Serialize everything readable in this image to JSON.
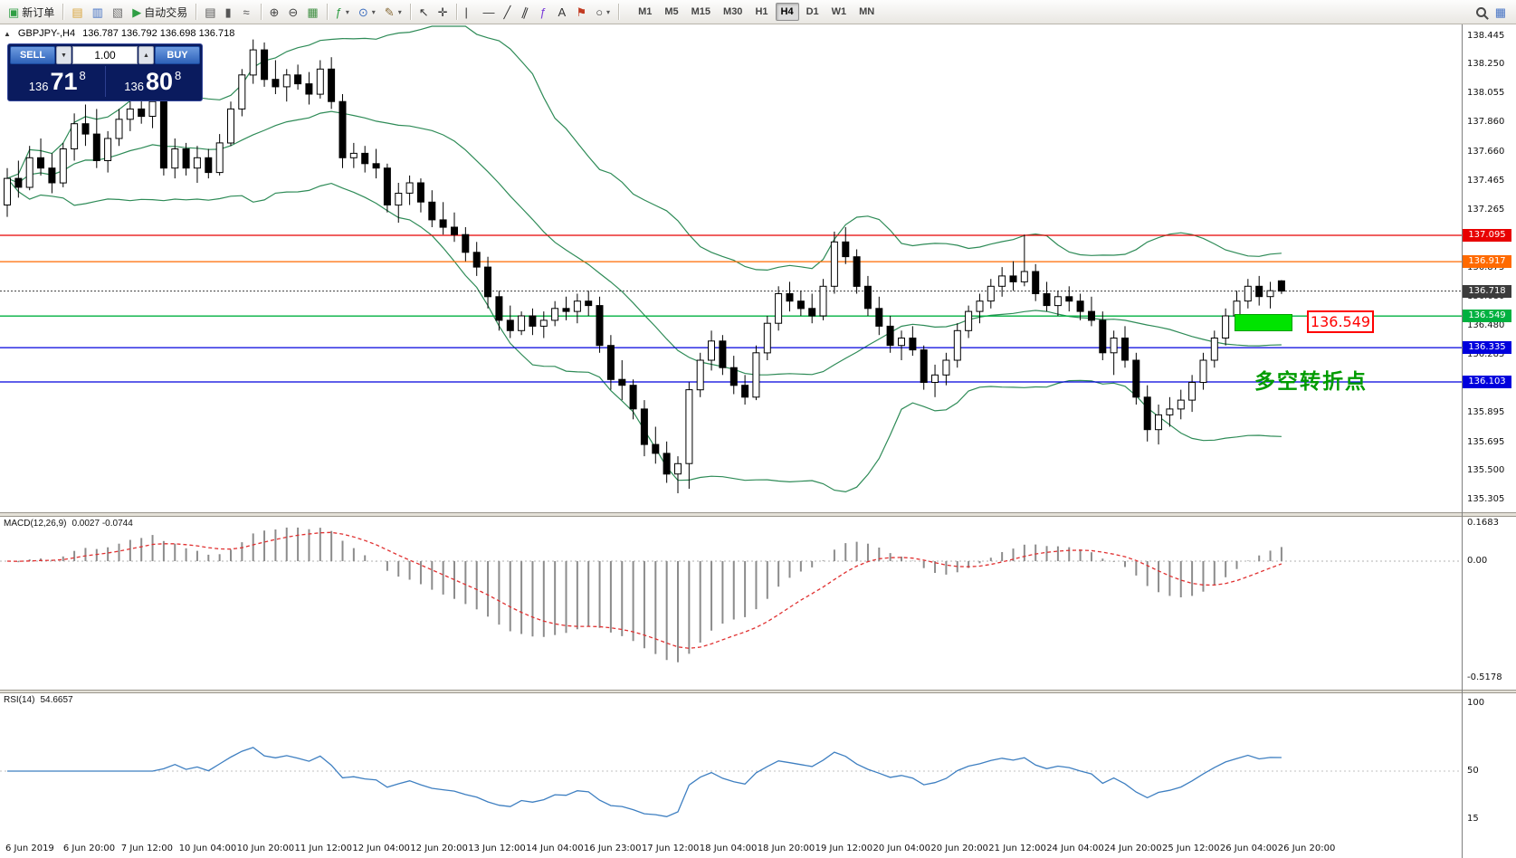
{
  "toolbar": {
    "caret_glyph": "▾",
    "left_items": [
      {
        "name": "new-order-button",
        "glyph": "▣",
        "glyph_color": "#2f9e44",
        "label": "新订单"
      },
      {
        "name": "separator"
      },
      {
        "name": "chart-window-icon",
        "glyph": "▤",
        "glyph_color": "#d9a43b"
      },
      {
        "name": "profile-icon",
        "glyph": "▥",
        "glyph_color": "#4472c4"
      },
      {
        "name": "navigator-icon",
        "glyph": "▧",
        "glyph_color": "#767676"
      },
      {
        "name": "auto-trading-button",
        "glyph": "▶",
        "glyph_color": "#2f9e44",
        "label": "自动交易"
      },
      {
        "name": "separator"
      },
      {
        "name": "bar-chart-type-icon",
        "glyph": "▤",
        "glyph_color": "#555555"
      },
      {
        "name": "candlestick-type-icon",
        "glyph": "▮",
        "glyph_color": "#555555"
      },
      {
        "name": "line-chart-type-icon",
        "glyph": "≈",
        "glyph_color": "#555555"
      },
      {
        "name": "separator"
      },
      {
        "name": "zoom-in-icon",
        "glyph": "⊕",
        "glyph_color": "#444444"
      },
      {
        "name": "zoom-out-icon",
        "glyph": "⊖",
        "glyph_color": "#444444"
      },
      {
        "name": "tile-windows-icon",
        "glyph": "▦",
        "glyph_color": "#3e8e41"
      },
      {
        "name": "separator"
      },
      {
        "name": "indicators-button",
        "glyph": "ƒ",
        "glyph_color": "#2f9e44",
        "caret": true
      },
      {
        "name": "period-button",
        "glyph": "⊙",
        "glyph_color": "#3e6fbf",
        "caret": true
      },
      {
        "name": "template-button",
        "glyph": "✎",
        "glyph_color": "#8a6d3b",
        "caret": true
      },
      {
        "name": "separator"
      },
      {
        "name": "cursor-icon",
        "glyph": "↖",
        "glyph_color": "#333333"
      },
      {
        "name": "crosshair-icon",
        "glyph": "✛",
        "glyph_color": "#333333"
      },
      {
        "name": "separator"
      },
      {
        "name": "vertical-line-icon",
        "glyph": "|",
        "glyph_color": "#333333"
      },
      {
        "name": "horizontal-line-icon",
        "glyph": "—",
        "glyph_color": "#333333"
      },
      {
        "name": "trendline-icon",
        "glyph": "╱",
        "glyph_color": "#333333"
      },
      {
        "name": "channel-icon",
        "glyph": "∥",
        "glyph_color": "#333333",
        "rotate": true
      },
      {
        "name": "fibonacci-icon",
        "glyph": "ƒ",
        "glyph_color": "#7a3bd9"
      },
      {
        "name": "text-icon",
        "glyph": "A",
        "glyph_color": "#333333"
      },
      {
        "name": "arrow-tool-icon",
        "glyph": "⚑",
        "glyph_color": "#c23b22"
      },
      {
        "name": "shapes-button",
        "glyph": "○",
        "glyph_color": "#333333",
        "caret": true
      },
      {
        "name": "separator"
      }
    ],
    "timeframes": [
      "M1",
      "M5",
      "M15",
      "M30",
      "H1",
      "H4",
      "D1",
      "W1",
      "MN"
    ],
    "active_timeframe": "H4",
    "right_items": [
      {
        "name": "search-button",
        "icon": "search"
      },
      {
        "name": "new-chart-button",
        "glyph": "▦",
        "glyph_color": "#4472c4"
      }
    ]
  },
  "chart": {
    "collapse_glyph": "▲",
    "symbol_title": "GBPJPY-,H4",
    "ohlc_text": "136.787 136.792 136.698 136.718",
    "trade_panel": {
      "sell_label": "SELL",
      "buy_label": "BUY",
      "volume": "1.00",
      "volume_down_glyph": "▼",
      "volume_up_glyph": "▲",
      "sell_price": {
        "small": "136",
        "big": "71",
        "sup": "8"
      },
      "buy_price": {
        "small": "136",
        "big": "80",
        "sup": "8"
      }
    },
    "annotations": {
      "price_box": "136.549",
      "note_text": "多空转折点"
    }
  },
  "chart_data": {
    "type": "candlestick",
    "symbol": "GBPJPY-",
    "timeframe": "H4",
    "ohlc_display": {
      "open": "136.787",
      "high": "136.792",
      "low": "136.698",
      "close": "136.718"
    },
    "y_ticks": [
      138.445,
      138.25,
      138.055,
      137.86,
      137.66,
      137.465,
      137.265,
      137.07,
      136.875,
      136.68,
      136.48,
      136.285,
      136.09,
      135.895,
      135.695,
      135.5,
      135.305
    ],
    "time_labels": [
      "6 Jun 2019",
      "6 Jun 20:00",
      "7 Jun 12:00",
      "10 Jun 04:00",
      "10 Jun 20:00",
      "11 Jun 12:00",
      "12 Jun 04:00",
      "12 Jun 20:00",
      "13 Jun 12:00",
      "14 Jun 04:00",
      "16 Jun 23:00",
      "17 Jun 12:00",
      "18 Jun 04:00",
      "18 Jun 20:00",
      "19 Jun 12:00",
      "20 Jun 04:00",
      "20 Jun 20:00",
      "21 Jun 12:00",
      "24 Jun 04:00",
      "24 Jun 20:00",
      "25 Jun 12:00",
      "26 Jun 04:00",
      "26 Jun 20:00"
    ],
    "levels": [
      {
        "price": 137.095,
        "color": "#e80000",
        "line": "solid"
      },
      {
        "price": 136.917,
        "color": "#ff6a00",
        "line": "solid"
      },
      {
        "price": 136.718,
        "color": "#3c3c3c",
        "line": "dotted",
        "current": true
      },
      {
        "price": 136.549,
        "color": "#00b140",
        "line": "solid"
      },
      {
        "price": 136.335,
        "color": "#0000dd",
        "line": "solid"
      },
      {
        "price": 136.103,
        "color": "#0000dd",
        "line": "solid"
      }
    ],
    "overlays": [
      {
        "name": "bollinger",
        "period": 20,
        "deviation": 2,
        "color": "#2e8b57"
      }
    ],
    "macd": {
      "label": "MACD(12,26,9)",
      "values_text": "0.0027 -0.0744",
      "fast": 12,
      "slow": 26,
      "signal": 9,
      "ticks": [
        {
          "label": "0.1683",
          "value": 0.1683
        },
        {
          "label": "0.00",
          "value": 0
        },
        {
          "label": "-0.5178",
          "value": -0.5178
        }
      ],
      "histogram_color": "#8c8c8c",
      "signal_color": "#e03131"
    },
    "rsi": {
      "label": "RSI(14)",
      "value_text": "54.6657",
      "period": 14,
      "ticks": [
        {
          "label": "100",
          "value": 100
        },
        {
          "label": "50",
          "value": 50
        },
        {
          "label": "15",
          "value": 15
        }
      ],
      "color": "#3e7fc1"
    },
    "candles": [
      [
        137.3,
        137.55,
        137.22,
        137.48
      ],
      [
        137.48,
        137.6,
        137.35,
        137.42
      ],
      [
        137.42,
        137.7,
        137.4,
        137.62
      ],
      [
        137.62,
        137.75,
        137.5,
        137.55
      ],
      [
        137.55,
        137.65,
        137.38,
        137.45
      ],
      [
        137.45,
        137.72,
        137.42,
        137.68
      ],
      [
        137.68,
        137.92,
        137.6,
        137.85
      ],
      [
        137.85,
        137.98,
        137.7,
        137.78
      ],
      [
        137.78,
        137.95,
        137.55,
        137.6
      ],
      [
        137.6,
        137.8,
        137.52,
        137.75
      ],
      [
        137.75,
        137.95,
        137.7,
        137.88
      ],
      [
        137.88,
        138.05,
        137.8,
        137.95
      ],
      [
        137.95,
        138.1,
        137.85,
        137.9
      ],
      [
        137.9,
        138.08,
        137.82,
        138.0
      ],
      [
        138.0,
        138.05,
        137.5,
        137.55
      ],
      [
        137.55,
        137.75,
        137.48,
        137.68
      ],
      [
        137.68,
        137.72,
        137.5,
        137.55
      ],
      [
        137.55,
        137.7,
        137.45,
        137.62
      ],
      [
        137.62,
        137.68,
        137.48,
        137.52
      ],
      [
        137.52,
        137.78,
        137.5,
        137.72
      ],
      [
        137.72,
        138.0,
        137.7,
        137.95
      ],
      [
        137.95,
        138.22,
        137.9,
        138.18
      ],
      [
        138.18,
        138.42,
        138.12,
        138.35
      ],
      [
        138.35,
        138.4,
        138.1,
        138.15
      ],
      [
        138.15,
        138.28,
        138.05,
        138.1
      ],
      [
        138.1,
        138.22,
        138.0,
        138.18
      ],
      [
        138.18,
        138.25,
        138.08,
        138.12
      ],
      [
        138.12,
        138.2,
        137.98,
        138.05
      ],
      [
        138.05,
        138.28,
        138.02,
        138.22
      ],
      [
        138.22,
        138.3,
        137.95,
        138.0
      ],
      [
        138.0,
        138.05,
        137.55,
        137.62
      ],
      [
        137.62,
        137.72,
        137.55,
        137.65
      ],
      [
        137.65,
        137.7,
        137.52,
        137.58
      ],
      [
        137.58,
        137.68,
        137.48,
        137.55
      ],
      [
        137.55,
        137.58,
        137.25,
        137.3
      ],
      [
        137.3,
        137.45,
        137.18,
        137.38
      ],
      [
        137.38,
        137.5,
        137.3,
        137.45
      ],
      [
        137.45,
        137.48,
        137.25,
        137.32
      ],
      [
        137.32,
        137.4,
        137.15,
        137.2
      ],
      [
        137.2,
        137.32,
        137.1,
        137.15
      ],
      [
        137.15,
        137.25,
        137.05,
        137.1
      ],
      [
        137.1,
        137.15,
        136.92,
        136.98
      ],
      [
        136.98,
        137.05,
        136.82,
        136.88
      ],
      [
        136.88,
        136.95,
        136.6,
        136.68
      ],
      [
        136.68,
        136.72,
        136.45,
        136.52
      ],
      [
        136.52,
        136.62,
        136.4,
        136.45
      ],
      [
        136.45,
        136.58,
        136.42,
        136.55
      ],
      [
        136.55,
        136.6,
        136.42,
        136.48
      ],
      [
        136.48,
        136.58,
        136.4,
        136.52
      ],
      [
        136.52,
        136.65,
        136.48,
        136.6
      ],
      [
        136.6,
        136.68,
        136.52,
        136.58
      ],
      [
        136.58,
        136.7,
        136.5,
        136.65
      ],
      [
        136.65,
        136.72,
        136.55,
        136.62
      ],
      [
        136.62,
        136.68,
        136.3,
        136.35
      ],
      [
        136.35,
        136.42,
        136.05,
        136.12
      ],
      [
        136.12,
        136.25,
        135.98,
        136.08
      ],
      [
        136.08,
        136.12,
        135.85,
        135.92
      ],
      [
        135.92,
        135.98,
        135.6,
        135.68
      ],
      [
        135.68,
        135.8,
        135.55,
        135.62
      ],
      [
        135.62,
        135.7,
        135.42,
        135.48
      ],
      [
        135.48,
        135.6,
        135.35,
        135.55
      ],
      [
        135.55,
        136.1,
        135.38,
        136.05
      ],
      [
        136.05,
        136.3,
        136.0,
        136.25
      ],
      [
        136.25,
        136.45,
        136.18,
        136.38
      ],
      [
        136.38,
        136.42,
        136.15,
        136.2
      ],
      [
        136.2,
        136.28,
        136.02,
        136.08
      ],
      [
        136.08,
        136.15,
        135.95,
        136.0
      ],
      [
        136.0,
        136.35,
        135.98,
        136.3
      ],
      [
        136.3,
        136.55,
        136.25,
        136.5
      ],
      [
        136.5,
        136.75,
        136.45,
        136.7
      ],
      [
        136.7,
        136.78,
        136.58,
        136.65
      ],
      [
        136.65,
        136.72,
        136.55,
        136.6
      ],
      [
        136.6,
        136.7,
        136.5,
        136.55
      ],
      [
        136.55,
        136.8,
        136.52,
        136.75
      ],
      [
        136.75,
        137.12,
        136.7,
        137.05
      ],
      [
        137.05,
        137.15,
        136.9,
        136.95
      ],
      [
        136.95,
        137.0,
        136.7,
        136.75
      ],
      [
        136.75,
        136.82,
        136.55,
        136.6
      ],
      [
        136.6,
        136.68,
        136.42,
        136.48
      ],
      [
        136.48,
        136.55,
        136.3,
        136.35
      ],
      [
        136.35,
        136.45,
        136.25,
        136.4
      ],
      [
        136.4,
        136.48,
        136.28,
        136.32
      ],
      [
        136.32,
        136.35,
        136.05,
        136.1
      ],
      [
        136.1,
        136.22,
        136.0,
        136.15
      ],
      [
        136.15,
        136.3,
        136.08,
        136.25
      ],
      [
        136.25,
        136.5,
        136.2,
        136.45
      ],
      [
        136.45,
        136.62,
        136.4,
        136.58
      ],
      [
        136.58,
        136.7,
        136.5,
        136.65
      ],
      [
        136.65,
        136.8,
        136.6,
        136.75
      ],
      [
        136.75,
        136.88,
        136.68,
        136.82
      ],
      [
        136.82,
        136.92,
        136.72,
        136.78
      ],
      [
        136.78,
        137.1,
        136.75,
        136.85
      ],
      [
        136.85,
        136.9,
        136.65,
        136.7
      ],
      [
        136.7,
        136.78,
        136.58,
        136.62
      ],
      [
        136.62,
        136.72,
        136.55,
        136.68
      ],
      [
        136.68,
        136.75,
        136.58,
        136.65
      ],
      [
        136.65,
        136.7,
        136.52,
        136.58
      ],
      [
        136.58,
        136.68,
        136.48,
        136.52
      ],
      [
        136.52,
        136.58,
        136.25,
        136.3
      ],
      [
        136.3,
        136.45,
        136.15,
        136.4
      ],
      [
        136.4,
        136.48,
        136.2,
        136.25
      ],
      [
        136.25,
        136.3,
        135.95,
        136.0
      ],
      [
        136.0,
        136.08,
        135.7,
        135.78
      ],
      [
        135.78,
        135.95,
        135.68,
        135.88
      ],
      [
        135.88,
        136.0,
        135.8,
        135.92
      ],
      [
        135.92,
        136.05,
        135.85,
        135.98
      ],
      [
        135.98,
        136.15,
        135.9,
        136.1
      ],
      [
        136.1,
        136.3,
        136.05,
        136.25
      ],
      [
        136.25,
        136.45,
        136.2,
        136.4
      ],
      [
        136.4,
        136.6,
        136.35,
        136.55
      ],
      [
        136.55,
        136.72,
        136.48,
        136.65
      ],
      [
        136.65,
        136.8,
        136.6,
        136.75
      ],
      [
        136.75,
        136.82,
        136.62,
        136.68
      ],
      [
        136.68,
        136.78,
        136.6,
        136.72
      ],
      [
        136.787,
        136.792,
        136.698,
        136.718
      ]
    ]
  }
}
